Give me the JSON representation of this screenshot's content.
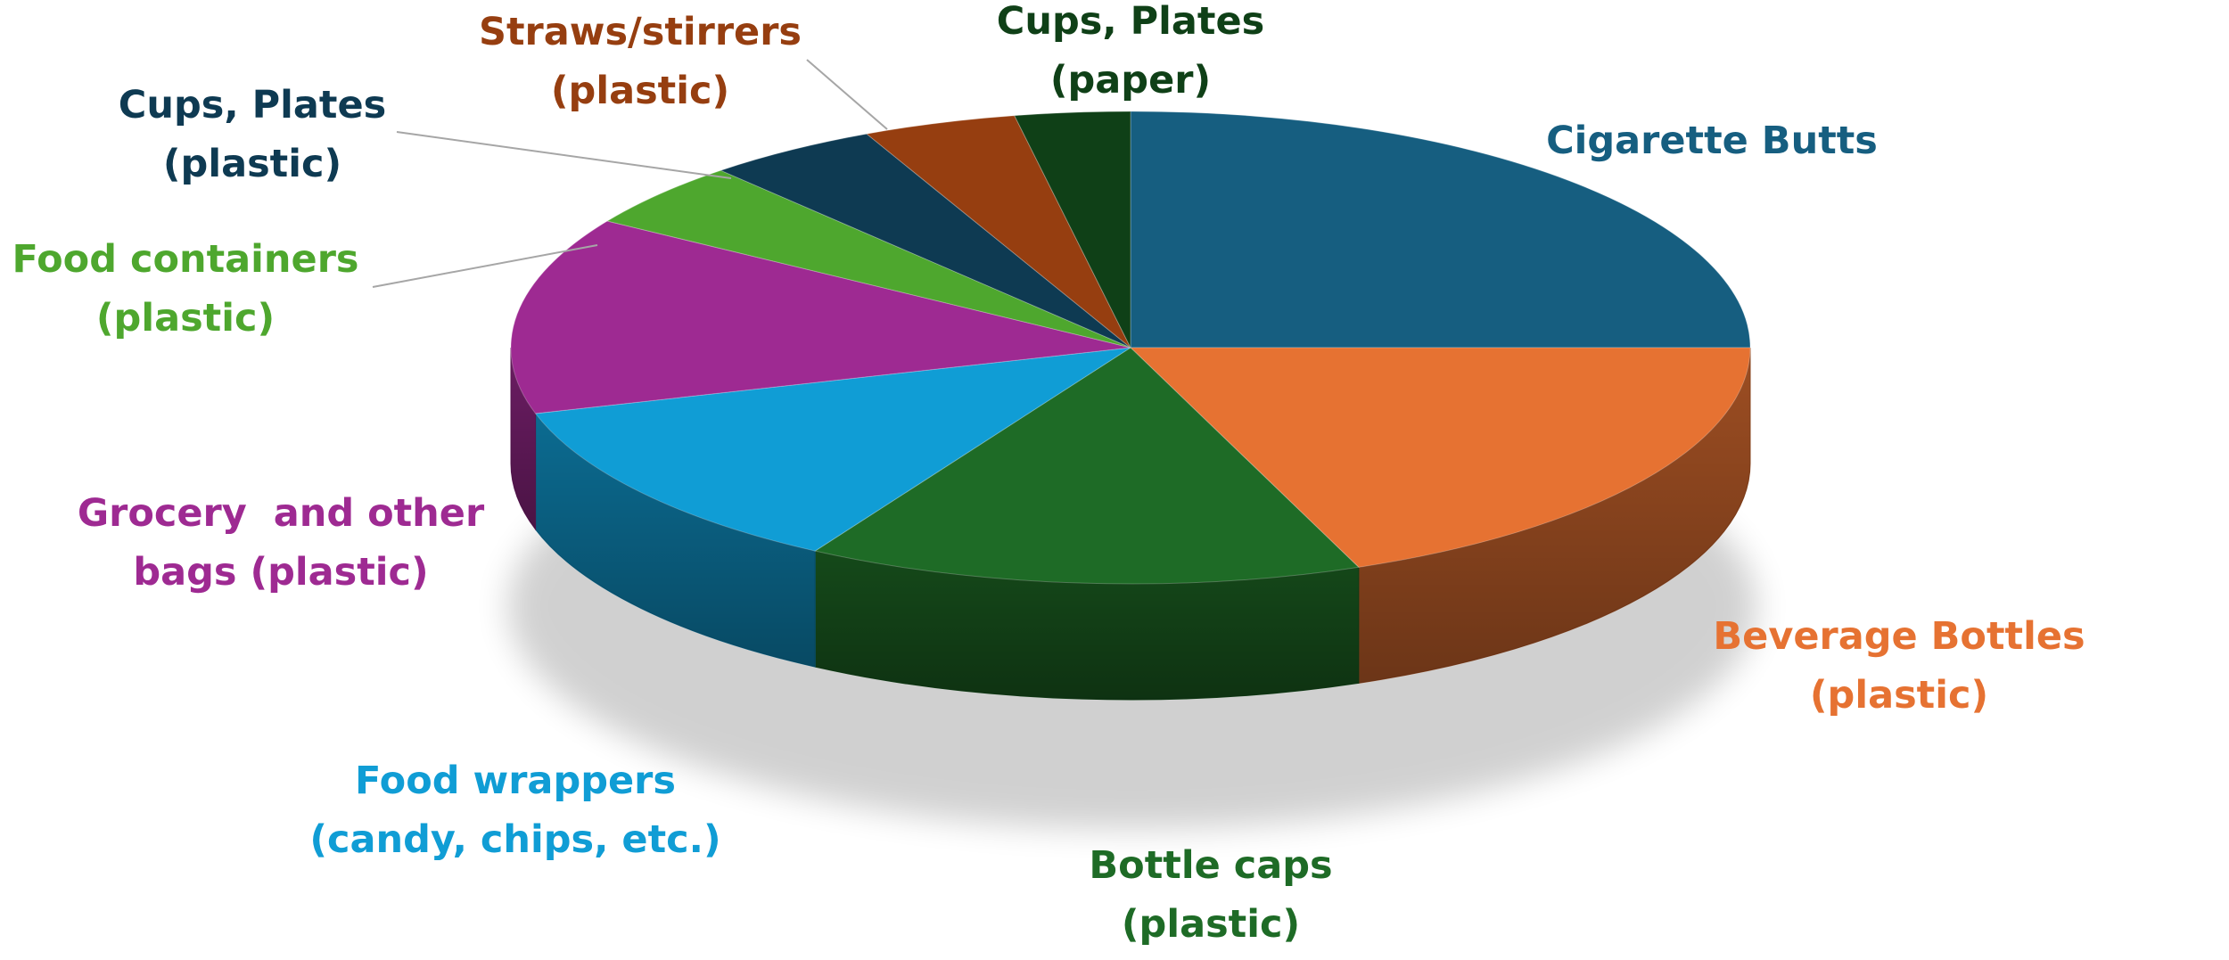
{
  "chart_data": {
    "type": "pie",
    "style": "3d",
    "title": "",
    "legend": "none",
    "data_labels": "category-names",
    "slices": [
      {
        "label_lines": [
          "Cigarette Butts"
        ],
        "value": 25,
        "color": "#165E80"
      },
      {
        "label_lines": [
          "Beverage Bottles",
          "(plastic)"
        ],
        "value": 19,
        "color": "#E67232"
      },
      {
        "label_lines": [
          "Bottle caps",
          "(plastic)"
        ],
        "value": 14.5,
        "color": "#1E6B26"
      },
      {
        "label_lines": [
          "Food wrappers",
          "(candy, chips, etc.)"
        ],
        "value": 12,
        "color": "#109DD5"
      },
      {
        "label_lines": [
          "Grocery  and other",
          "bags (plastic)"
        ],
        "value": 13.5,
        "color": "#9E2A92"
      },
      {
        "label_lines": [
          "Food containers",
          "(plastic)"
        ],
        "value": 4.5,
        "color": "#4EA72E"
      },
      {
        "label_lines": [
          "Cups, Plates",
          "(plastic)"
        ],
        "value": 4.5,
        "color": "#0E3A52"
      },
      {
        "label_lines": [
          "Straws/stirrers",
          "(plastic)"
        ],
        "value": 4,
        "color": "#963E10"
      },
      {
        "label_lines": [
          "Cups, Plates",
          "(paper)"
        ],
        "value": 3,
        "color": "#0F4017"
      }
    ]
  }
}
